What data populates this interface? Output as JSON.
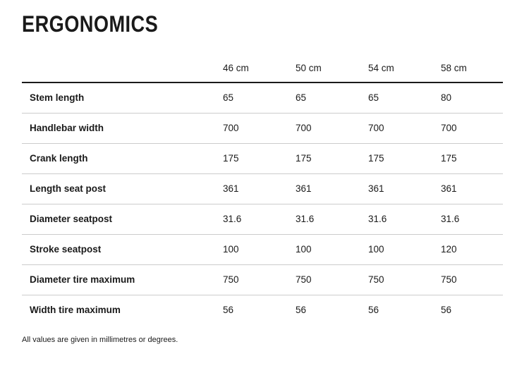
{
  "page": {
    "title": "ERGONOMICS",
    "footnote": "All values are given in millimetres or degrees."
  },
  "table": {
    "columns": [
      "46 cm",
      "50 cm",
      "54 cm",
      "58 cm"
    ],
    "rows": [
      {
        "label": "Stem length",
        "values": [
          "65",
          "65",
          "65",
          "80"
        ]
      },
      {
        "label": "Handlebar width",
        "values": [
          "700",
          "700",
          "700",
          "700"
        ]
      },
      {
        "label": "Crank length",
        "values": [
          "175",
          "175",
          "175",
          "175"
        ]
      },
      {
        "label": "Length seat post",
        "values": [
          "361",
          "361",
          "361",
          "361"
        ]
      },
      {
        "label": "Diameter seatpost",
        "values": [
          "31.6",
          "31.6",
          "31.6",
          "31.6"
        ]
      },
      {
        "label": "Stroke seatpost",
        "values": [
          "100",
          "100",
          "100",
          "120"
        ]
      },
      {
        "label": "Diameter tire maximum",
        "values": [
          "750",
          "750",
          "750",
          "750"
        ]
      },
      {
        "label": "Width tire maximum",
        "values": [
          "56",
          "56",
          "56",
          "56"
        ]
      }
    ]
  },
  "colors": {
    "text": "#1a1a1a",
    "thick_border": "#1a1a1a",
    "thin_border": "#cccccc",
    "background": "#ffffff"
  }
}
